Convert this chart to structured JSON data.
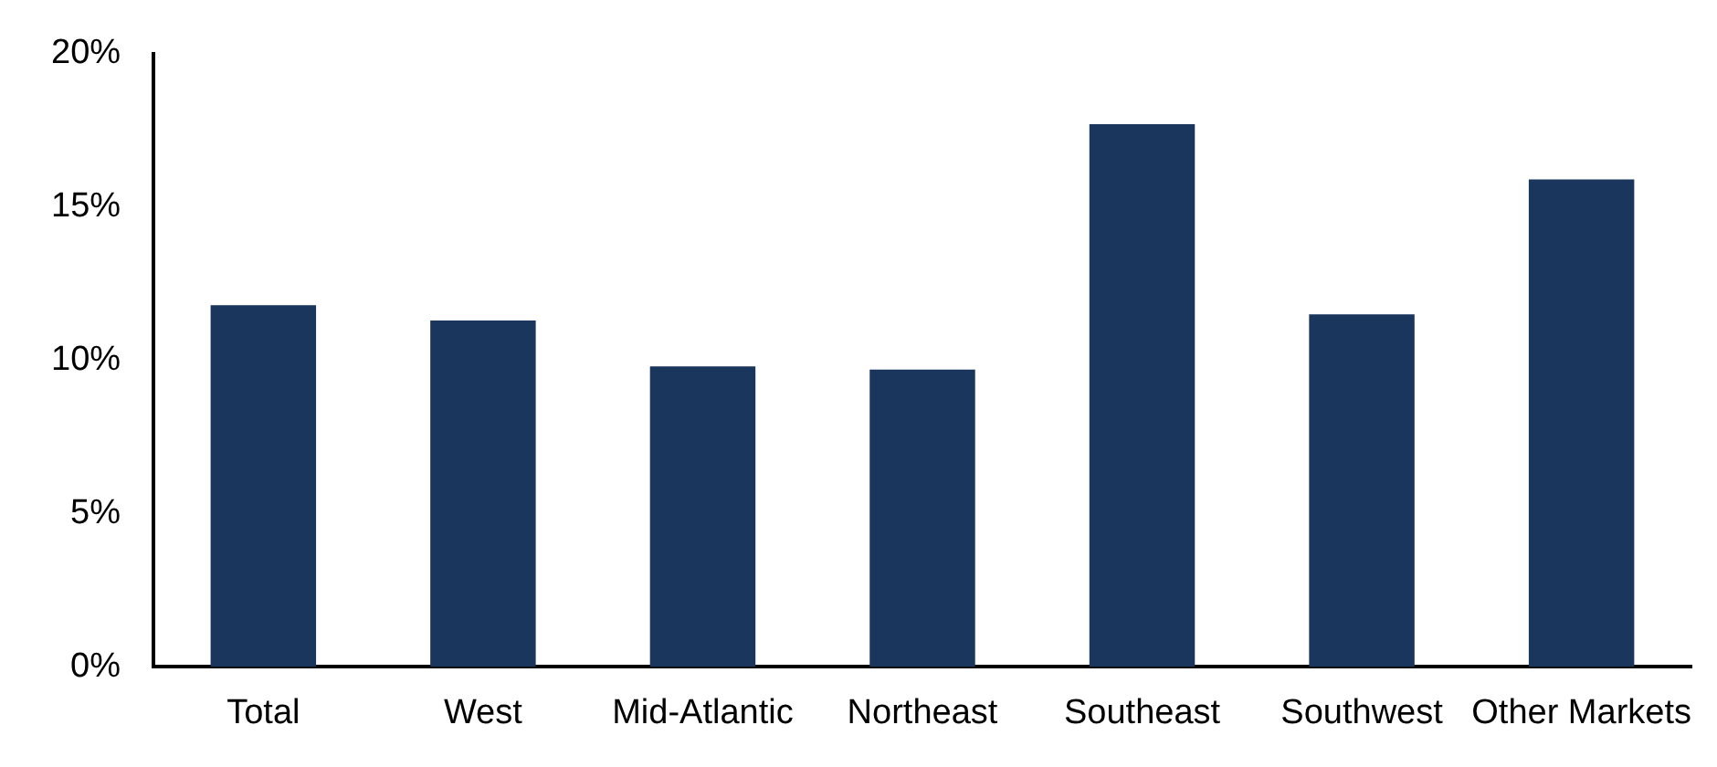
{
  "chart_data": {
    "type": "bar",
    "categories": [
      "Total",
      "West",
      "Mid-Atlantic",
      "Northeast",
      "Southeast",
      "Southwest",
      "Other Markets"
    ],
    "values": [
      11.8,
      11.3,
      9.8,
      9.7,
      17.7,
      11.5,
      15.9
    ],
    "color": "#1b365d",
    "ylim": [
      0,
      20
    ],
    "yticks": [
      {
        "value": 0,
        "label": "0%"
      },
      {
        "value": 5,
        "label": "5%"
      },
      {
        "value": 10,
        "label": "10%"
      },
      {
        "value": 15,
        "label": "15%"
      },
      {
        "value": 20,
        "label": "20%"
      }
    ],
    "grid": false
  }
}
